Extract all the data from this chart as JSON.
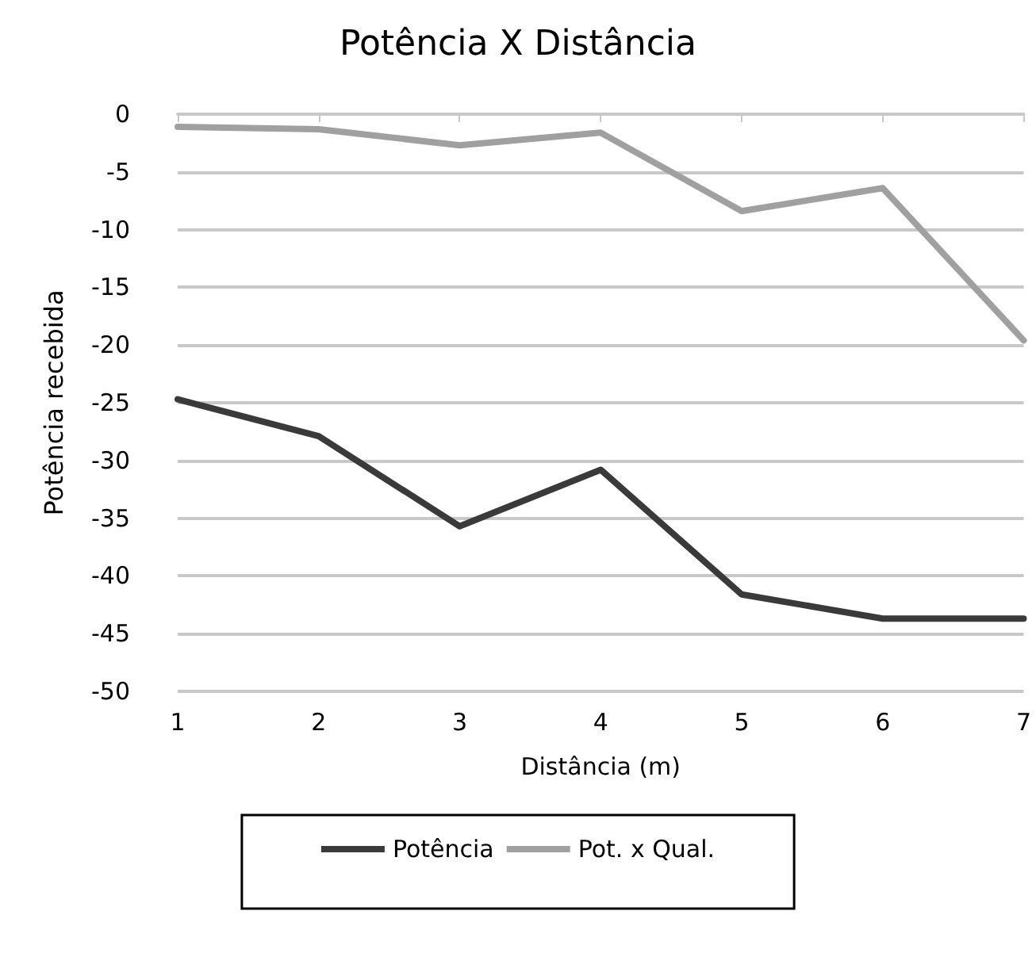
{
  "chart_data": {
    "type": "line",
    "title": "Potência X Distância",
    "xlabel": "Distância (m)",
    "ylabel": "Potência recebida",
    "categories": [
      "1",
      "2",
      "3",
      "4",
      "5",
      "6",
      "7"
    ],
    "series": [
      {
        "name": "Potência",
        "color": "#3a3a3a",
        "values": [
          -24.7,
          -27.9,
          -35.7,
          -30.8,
          -41.6,
          -43.7,
          -43.7
        ]
      },
      {
        "name": "Pot. x Qual.",
        "color": "#a0a0a0",
        "values": [
          -1.1,
          -1.3,
          -2.7,
          -1.6,
          -8.4,
          -6.4,
          -19.6
        ]
      }
    ],
    "ylim": [
      -50,
      0
    ],
    "yticks": [
      -50,
      -45,
      -40,
      -35,
      -30,
      -25,
      -20,
      -15,
      -10,
      -5,
      0
    ],
    "grid": "y",
    "legend": "bottom",
    "marker": "none",
    "line_style": "solid"
  }
}
